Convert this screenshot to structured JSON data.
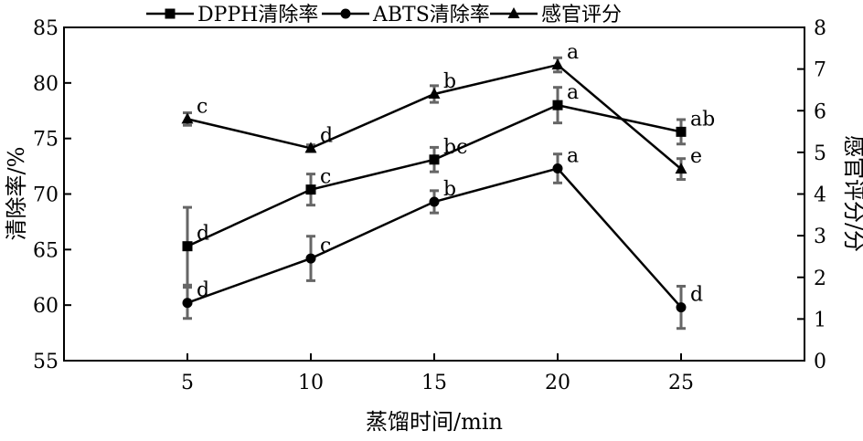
{
  "chart_data": {
    "type": "line",
    "xlabel": "蒸馏时间/min",
    "ylabel_left": "清除率/%",
    "ylabel_right": "感官评分/分",
    "x": [
      5,
      10,
      15,
      20,
      25
    ],
    "xlim": [
      0,
      30
    ],
    "xticks": [
      "5",
      "10",
      "15",
      "20",
      "25"
    ],
    "ylim_left": [
      55,
      85
    ],
    "yticks_left": [
      "55",
      "60",
      "65",
      "70",
      "75",
      "80",
      "85"
    ],
    "ylim_right": [
      0,
      8
    ],
    "yticks_right": [
      "0",
      "1",
      "2",
      "3",
      "4",
      "5",
      "6",
      "7",
      "8"
    ],
    "legend_position": "top",
    "grid": false,
    "series": [
      {
        "name": "DPPH清除率",
        "marker": "square",
        "axis": "left",
        "values": [
          65.3,
          70.4,
          73.1,
          78.0,
          75.6
        ],
        "errors": [
          3.5,
          1.4,
          1.1,
          1.6,
          1.1
        ],
        "labels": [
          "d",
          "c",
          "bc",
          "a",
          "ab"
        ]
      },
      {
        "name": "ABTS清除率",
        "marker": "circle",
        "axis": "left",
        "values": [
          60.2,
          64.2,
          69.3,
          72.3,
          59.8
        ],
        "errors": [
          1.4,
          2.0,
          1.0,
          1.3,
          1.9
        ],
        "labels": [
          "d",
          "c",
          "b",
          "a",
          "d"
        ]
      },
      {
        "name": "感官评分",
        "marker": "triangle",
        "axis": "right",
        "values": [
          5.8,
          5.1,
          6.4,
          7.1,
          4.6
        ],
        "errors": [
          0.15,
          0.08,
          0.2,
          0.17,
          0.25
        ],
        "labels": [
          "c",
          "d",
          "b",
          "a",
          "e"
        ]
      }
    ]
  }
}
